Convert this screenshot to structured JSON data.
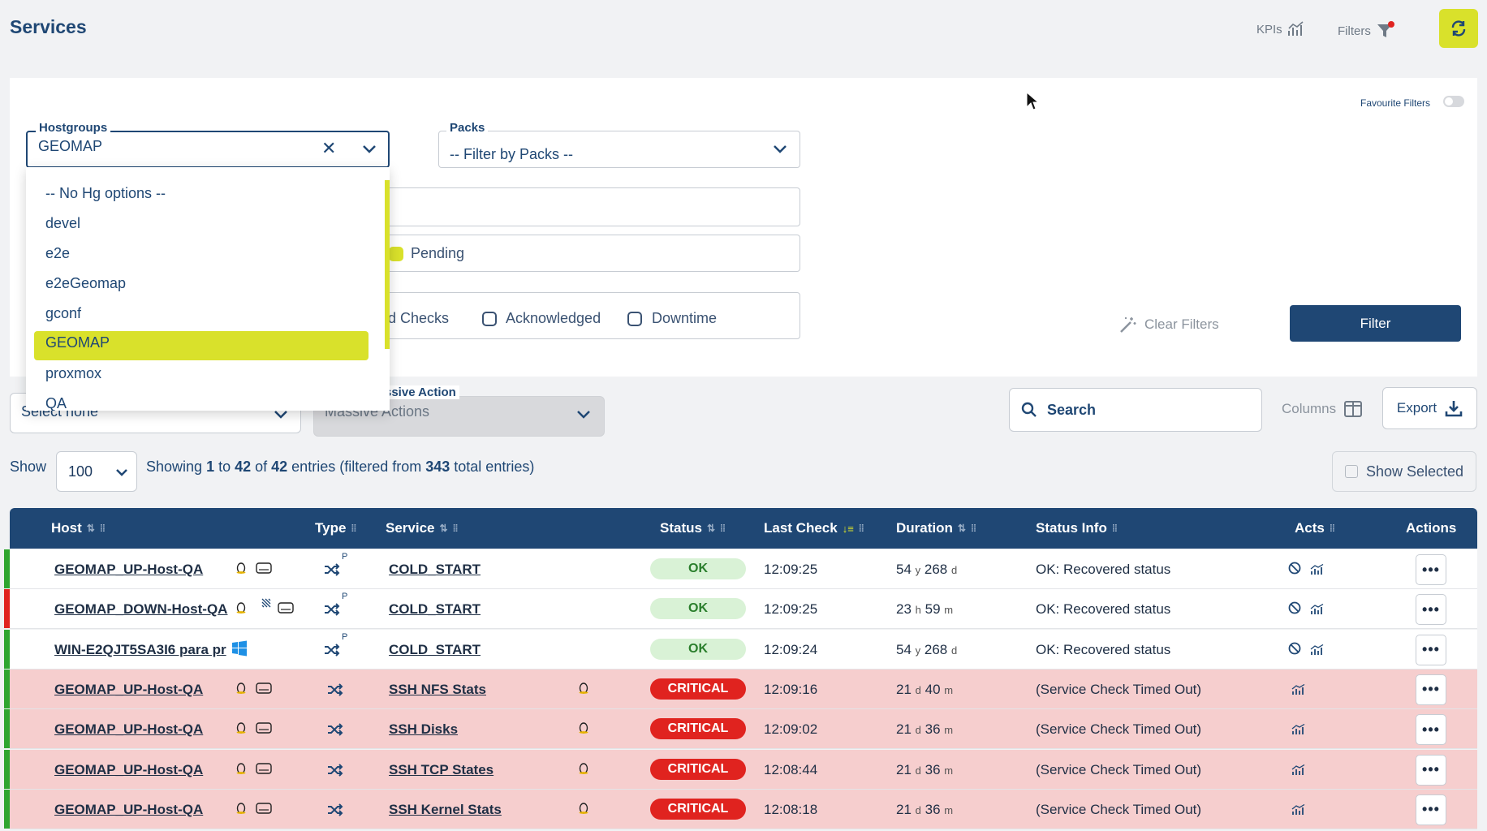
{
  "header": {
    "title": "Services",
    "kpis_label": "KPIs",
    "filters_label": "Filters"
  },
  "filters": {
    "favourite_label": "Favourite Filters",
    "hostgroups": {
      "label": "Hostgroups",
      "value": "GEOMAP"
    },
    "packs": {
      "label": "Packs",
      "value": "-- Filter by Packs --"
    },
    "hostgroup_options": [
      "-- No Hg options --",
      "devel",
      "e2e",
      "e2eGeomap",
      "gconf",
      "GEOMAP",
      "proxmox",
      "QA"
    ],
    "selected_option": "GEOMAP",
    "pending_label": "Pending",
    "checks_partial_label": "ed Checks",
    "acknowledged_label": "Acknowledged",
    "downtime_label": "Downtime",
    "clear_label": "Clear Filters",
    "filter_label": "Filter"
  },
  "toolbar": {
    "select_none": "Select none",
    "massive_action_label": "ssive Action",
    "massive_actions_value": "Massive Actions",
    "search_placeholder": "Search",
    "columns_label": "Columns",
    "export_label": "Export",
    "show_label": "Show",
    "page_size": "100",
    "entries_prefix": "Showing ",
    "entries_from": "1",
    "entries_to_word": " to ",
    "entries_to": "42",
    "entries_of_word": " of ",
    "entries_total": "42",
    "entries_suffix": " entries (filtered from ",
    "entries_all": "343",
    "entries_end": " total entries)",
    "show_selected": "Show Selected"
  },
  "table": {
    "columns": {
      "host": "Host",
      "type": "Type",
      "service": "Service",
      "status": "Status",
      "last_check": "Last Check",
      "duration": "Duration",
      "status_info": "Status Info",
      "acts": "Acts",
      "actions": "Actions"
    },
    "type_superscript": "P",
    "rows": [
      {
        "host": "GEOMAP_UP-Host-QA",
        "service": "COLD_START",
        "status": "OK",
        "last_check": "12:09:25",
        "dur_a": "54",
        "dur_au": "y",
        "dur_b": "268",
        "dur_bu": "d",
        "info": "OK: Recovered status",
        "bar": "#2fa52f",
        "crit": false,
        "host_os": "linux"
      },
      {
        "host": "GEOMAP_DOWN-Host-QA",
        "service": "COLD_START",
        "status": "OK",
        "last_check": "12:09:25",
        "dur_a": "23",
        "dur_au": "h",
        "dur_b": "59",
        "dur_bu": "m",
        "info": "OK: Recovered status",
        "bar": "#e0231f",
        "crit": false,
        "host_os": "linux"
      },
      {
        "host": "WIN-E2QJT5SA3I6 para pr",
        "service": "COLD_START",
        "status": "OK",
        "last_check": "12:09:24",
        "dur_a": "54",
        "dur_au": "y",
        "dur_b": "268",
        "dur_bu": "d",
        "info": "OK: Recovered status",
        "bar": "#2fa52f",
        "crit": false,
        "host_os": "windows"
      },
      {
        "host": "GEOMAP_UP-Host-QA",
        "service": "SSH NFS Stats",
        "status": "CRITICAL",
        "last_check": "12:09:16",
        "dur_a": "21",
        "dur_au": "d",
        "dur_b": "40",
        "dur_bu": "m",
        "info": "(Service Check Timed Out)",
        "bar": "#2fa52f",
        "crit": true,
        "host_os": "linux"
      },
      {
        "host": "GEOMAP_UP-Host-QA",
        "service": "SSH Disks",
        "status": "CRITICAL",
        "last_check": "12:09:02",
        "dur_a": "21",
        "dur_au": "d",
        "dur_b": "36",
        "dur_bu": "m",
        "info": "(Service Check Timed Out)",
        "bar": "#2fa52f",
        "crit": true,
        "host_os": "linux"
      },
      {
        "host": "GEOMAP_UP-Host-QA",
        "service": "SSH TCP States",
        "status": "CRITICAL",
        "last_check": "12:08:44",
        "dur_a": "21",
        "dur_au": "d",
        "dur_b": "36",
        "dur_bu": "m",
        "info": "(Service Check Timed Out)",
        "bar": "#2fa52f",
        "crit": true,
        "host_os": "linux"
      },
      {
        "host": "GEOMAP_UP-Host-QA",
        "service": "SSH Kernel Stats",
        "status": "CRITICAL",
        "last_check": "12:08:18",
        "dur_a": "21",
        "dur_au": "d",
        "dur_b": "36",
        "dur_bu": "m",
        "info": "(Service Check Timed Out)",
        "bar": "#2fa52f",
        "crit": true,
        "host_os": "linux"
      }
    ]
  },
  "colors": {
    "brand": "#1f4774",
    "accent": "#d9e12b",
    "critical": "#e0231f",
    "critical_row": "#f6cece",
    "ok": "#2fa52f"
  }
}
